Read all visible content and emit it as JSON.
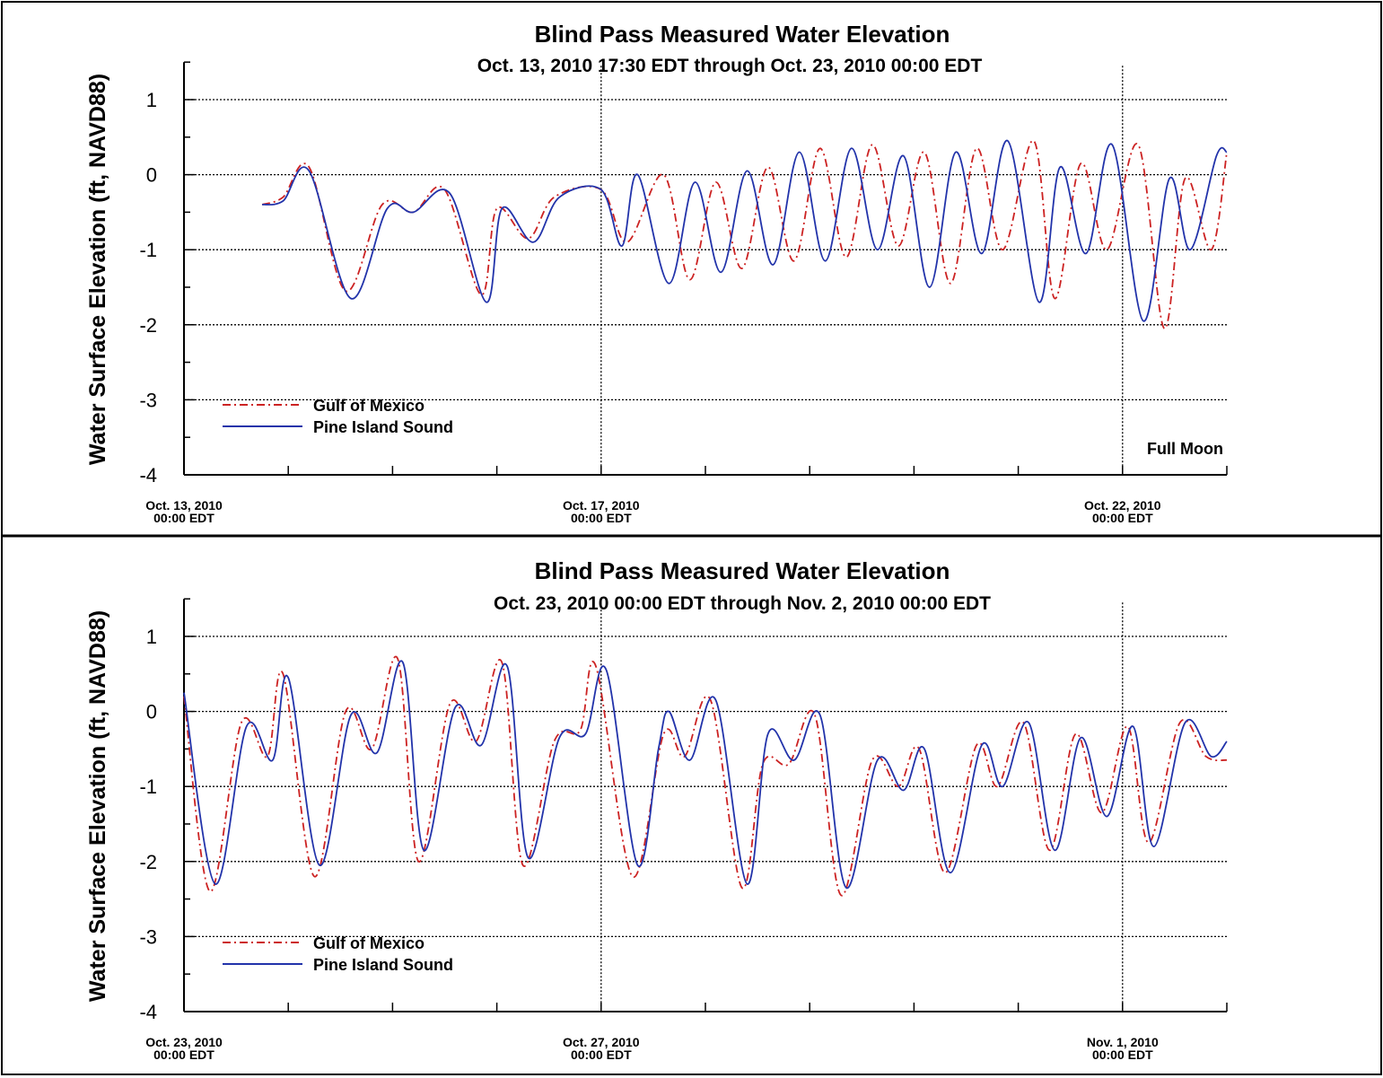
{
  "chart_data": [
    {
      "type": "line",
      "title": "Blind Pass Measured Water Elevation",
      "subtitle": "Oct. 13, 2010 17:30 EDT through Oct. 23, 2010 00:00 EDT",
      "ylabel": "Water Surface Elevation (ft, NAVD88)",
      "xlabel": "",
      "x_unit": "days since Oct. 13, 2010 00:00 EDT",
      "xlim": [
        0,
        10
      ],
      "ylim": [
        -4,
        1.5
      ],
      "y_ticks": [
        1,
        0,
        -1,
        -2,
        -3,
        -4
      ],
      "x_tick_labels": [
        {
          "x": 0,
          "line1": "Oct. 13, 2010",
          "line2": "00:00 EDT"
        },
        {
          "x": 4,
          "line1": "Oct. 17, 2010",
          "line2": "00:00 EDT"
        },
        {
          "x": 9,
          "line1": "Oct. 22, 2010",
          "line2": "00:00 EDT"
        }
      ],
      "x_vlines": [
        4,
        9
      ],
      "grid": "horizontal dotted at y = 1, 0, -1, -2, -3",
      "annotation": {
        "text": "Full Moon",
        "x": 9
      },
      "legend": {
        "placement": "lower-left"
      },
      "series": [
        {
          "name": "Gulf of Mexico",
          "color": "#cc2222",
          "style": "dash-dot",
          "x": [
            0.75,
            0.95,
            1.2,
            1.55,
            1.9,
            2.2,
            2.5,
            2.85,
            3.0,
            3.3,
            3.55,
            4.0,
            4.25,
            4.6,
            4.85,
            5.1,
            5.35,
            5.6,
            5.85,
            6.1,
            6.35,
            6.6,
            6.85,
            7.1,
            7.35,
            7.6,
            7.85,
            8.15,
            8.35,
            8.6,
            8.85,
            9.15,
            9.4,
            9.6,
            9.85,
            10.0
          ],
          "y": [
            -0.4,
            -0.3,
            0.1,
            -1.55,
            -0.4,
            -0.5,
            -0.2,
            -1.6,
            -0.45,
            -0.85,
            -0.3,
            -0.2,
            -0.9,
            0.0,
            -1.4,
            -0.1,
            -1.25,
            0.1,
            -1.15,
            0.35,
            -1.1,
            0.4,
            -0.95,
            0.3,
            -1.45,
            0.35,
            -1.0,
            0.45,
            -1.65,
            0.15,
            -1.0,
            0.4,
            -2.05,
            -0.05,
            -1.0,
            0.3
          ]
        },
        {
          "name": "Pine Island Sound",
          "color": "#2233aa",
          "style": "solid",
          "x": [
            0.75,
            0.95,
            1.2,
            1.6,
            1.95,
            2.2,
            2.55,
            2.9,
            3.05,
            3.35,
            3.6,
            4.0,
            4.2,
            4.35,
            4.65,
            4.9,
            5.15,
            5.4,
            5.65,
            5.9,
            6.15,
            6.4,
            6.65,
            6.9,
            7.15,
            7.4,
            7.65,
            7.9,
            8.2,
            8.4,
            8.65,
            8.9,
            9.2,
            9.45,
            9.65,
            9.9,
            10.0
          ],
          "y": [
            -0.4,
            -0.35,
            0.05,
            -1.65,
            -0.45,
            -0.5,
            -0.25,
            -1.7,
            -0.45,
            -0.9,
            -0.3,
            -0.2,
            -0.95,
            0.0,
            -1.45,
            -0.1,
            -1.3,
            0.05,
            -1.2,
            0.3,
            -1.15,
            0.35,
            -1.0,
            0.25,
            -1.5,
            0.3,
            -1.05,
            0.45,
            -1.7,
            0.1,
            -1.05,
            0.4,
            -1.95,
            -0.05,
            -1.0,
            0.25,
            0.3
          ]
        }
      ]
    },
    {
      "type": "line",
      "title": "Blind Pass Measured Water Elevation",
      "subtitle": "Oct. 23, 2010 00:00 EDT through Nov. 2, 2010 00:00 EDT",
      "ylabel": "Water Surface Elevation (ft, NAVD88)",
      "xlabel": "",
      "x_unit": "days since Oct. 23, 2010 00:00 EDT",
      "xlim": [
        0,
        10
      ],
      "ylim": [
        -4,
        1.5
      ],
      "y_ticks": [
        1,
        0,
        -1,
        -2,
        -3,
        -4
      ],
      "x_tick_labels": [
        {
          "x": 0,
          "line1": "Oct. 23, 2010",
          "line2": "00:00 EDT"
        },
        {
          "x": 4,
          "line1": "Oct. 27, 2010",
          "line2": "00:00 EDT"
        },
        {
          "x": 9,
          "line1": "Nov. 1, 2010",
          "line2": "00:00 EDT"
        }
      ],
      "x_vlines": [
        4,
        9
      ],
      "grid": "horizontal dotted at y = 1, 0, -1, -2, -3",
      "legend": {
        "placement": "lower-left"
      },
      "series": [
        {
          "name": "Gulf of Mexico",
          "color": "#cc2222",
          "style": "dash-dot",
          "x": [
            0.0,
            0.25,
            0.55,
            0.8,
            0.95,
            1.25,
            1.55,
            1.8,
            2.05,
            2.25,
            2.55,
            2.8,
            3.05,
            3.25,
            3.55,
            3.8,
            3.95,
            4.3,
            4.6,
            4.8,
            5.05,
            5.35,
            5.55,
            5.8,
            6.05,
            6.3,
            6.6,
            6.85,
            7.05,
            7.3,
            7.6,
            7.8,
            8.05,
            8.3,
            8.55,
            8.8,
            9.05,
            9.25,
            9.55,
            9.8,
            10.0
          ],
          "y": [
            0.2,
            -2.4,
            -0.15,
            -0.6,
            0.5,
            -2.2,
            0.0,
            -0.5,
            0.7,
            -2.0,
            0.1,
            -0.4,
            0.65,
            -2.05,
            -0.4,
            -0.25,
            0.6,
            -2.2,
            -0.3,
            -0.6,
            0.15,
            -2.35,
            -0.7,
            -0.7,
            -0.05,
            -2.45,
            -0.65,
            -1.0,
            -0.5,
            -2.15,
            -0.45,
            -1.0,
            -0.15,
            -1.85,
            -0.3,
            -1.35,
            -0.2,
            -1.75,
            -0.15,
            -0.6,
            -0.65
          ]
        },
        {
          "name": "Pine Island Sound",
          "color": "#2233aa",
          "style": "solid",
          "x": [
            0.0,
            0.3,
            0.6,
            0.85,
            1.0,
            1.3,
            1.6,
            1.85,
            2.1,
            2.3,
            2.6,
            2.85,
            3.1,
            3.3,
            3.6,
            3.85,
            4.05,
            4.35,
            4.55,
            4.65,
            4.85,
            5.1,
            5.4,
            5.6,
            5.85,
            6.1,
            6.35,
            6.65,
            6.9,
            7.1,
            7.35,
            7.65,
            7.85,
            8.1,
            8.35,
            8.6,
            8.85,
            9.1,
            9.3,
            9.6,
            9.85,
            10.0
          ],
          "y": [
            0.25,
            -2.3,
            -0.2,
            -0.65,
            0.45,
            -2.05,
            -0.05,
            -0.55,
            0.65,
            -1.85,
            0.05,
            -0.45,
            0.6,
            -1.95,
            -0.35,
            -0.3,
            0.55,
            -2.05,
            -0.5,
            0.0,
            -0.65,
            0.15,
            -2.3,
            -0.3,
            -0.65,
            -0.05,
            -2.35,
            -0.65,
            -1.05,
            -0.5,
            -2.15,
            -0.45,
            -1.0,
            -0.15,
            -1.85,
            -0.35,
            -1.4,
            -0.2,
            -1.8,
            -0.15,
            -0.6,
            -0.4
          ]
        }
      ]
    }
  ]
}
